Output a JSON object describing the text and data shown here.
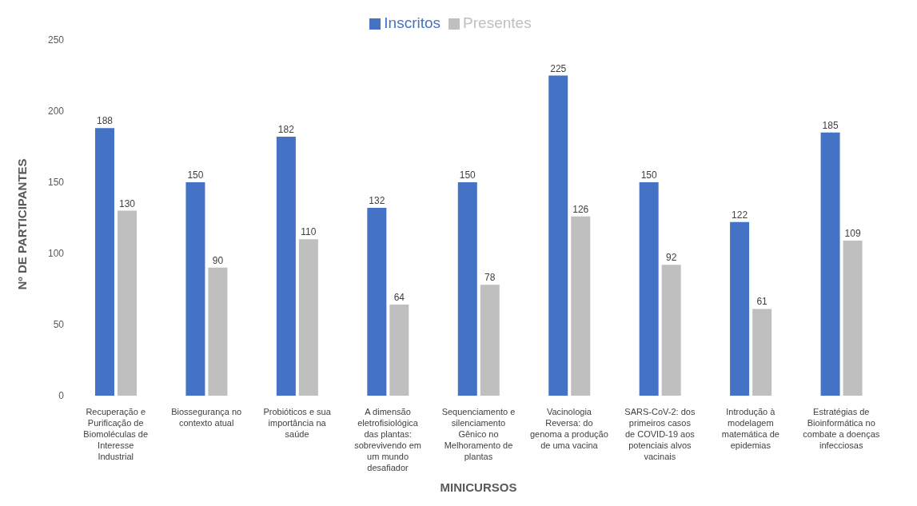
{
  "chart_data": {
    "type": "bar",
    "xlabel": "MINICURSOS",
    "ylabel": "Nº DE PARTICIPANTES",
    "categories": [
      "Recuperação e Purificação de Biomoléculas de Interesse Industrial",
      "Biossegurança no contexto atual",
      "Probióticos e sua importância na saúde",
      "A dimensão eletrofisiológica das plantas: sobrevivendo em um mundo desafiador",
      "Sequenciamento e silenciamento Gênico no Melhoramento de plantas",
      "Vacinologia Reversa: do genoma a produção de uma vacina",
      "SARS-CoV-2: dos primeiros casos de COVID-19 aos potenciais alvos vacinais",
      "Introdução à modelagem matemática de epidemias",
      "Estratégias de Bioinformática no combate a doenças infecciosas"
    ],
    "series": [
      {
        "name": "Inscritos",
        "color": "#4472c4",
        "values": [
          188,
          150,
          182,
          132,
          150,
          225,
          150,
          122,
          185
        ]
      },
      {
        "name": "Presentes",
        "color": "#bfbfbf",
        "values": [
          130,
          90,
          110,
          64,
          78,
          126,
          92,
          61,
          109
        ]
      }
    ],
    "ylim": [
      0,
      250
    ],
    "yticks": [
      0,
      50,
      100,
      150,
      200,
      250
    ],
    "legend": "top",
    "data_labels": true
  }
}
